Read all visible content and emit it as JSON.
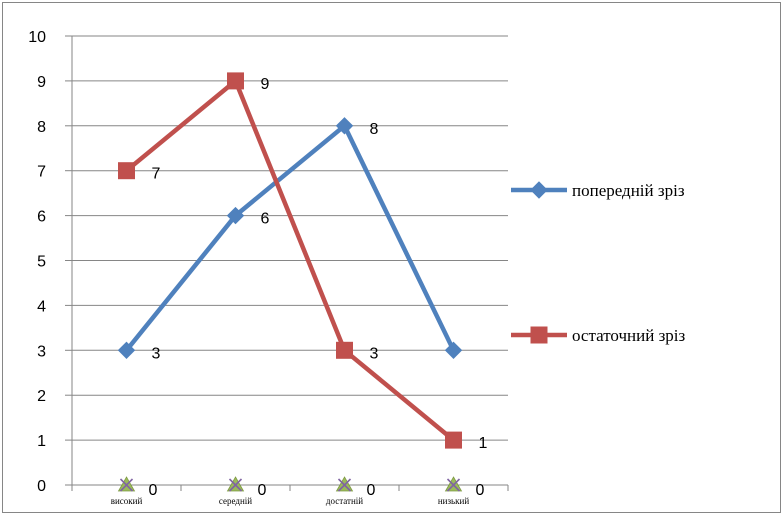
{
  "chart_data": {
    "type": "line",
    "title": "",
    "xlabel": "",
    "ylabel": "",
    "categories": [
      "високий",
      "середній",
      "достатній",
      "низький"
    ],
    "ylim": [
      0,
      10
    ],
    "yticks": [
      0,
      1,
      2,
      3,
      4,
      5,
      6,
      7,
      8,
      9,
      10
    ],
    "grid": true,
    "legend_position": "right",
    "series": [
      {
        "name": "попередній зріз",
        "values": [
          3,
          6,
          8,
          3
        ],
        "labels": [
          "3",
          "6",
          "8",
          ""
        ],
        "color": "#4f81bd",
        "marker": "diamond"
      },
      {
        "name": "остаточний зріз",
        "values": [
          7,
          9,
          3,
          1
        ],
        "labels": [
          "7",
          "9",
          "3",
          "1"
        ],
        "color": "#c0504d",
        "marker": "square"
      },
      {
        "name": "",
        "values": [
          0,
          0,
          0,
          0
        ],
        "labels": [
          "0",
          "0",
          "0",
          "0"
        ],
        "color": "#9bbb59",
        "marker": "x-triangle"
      }
    ]
  }
}
